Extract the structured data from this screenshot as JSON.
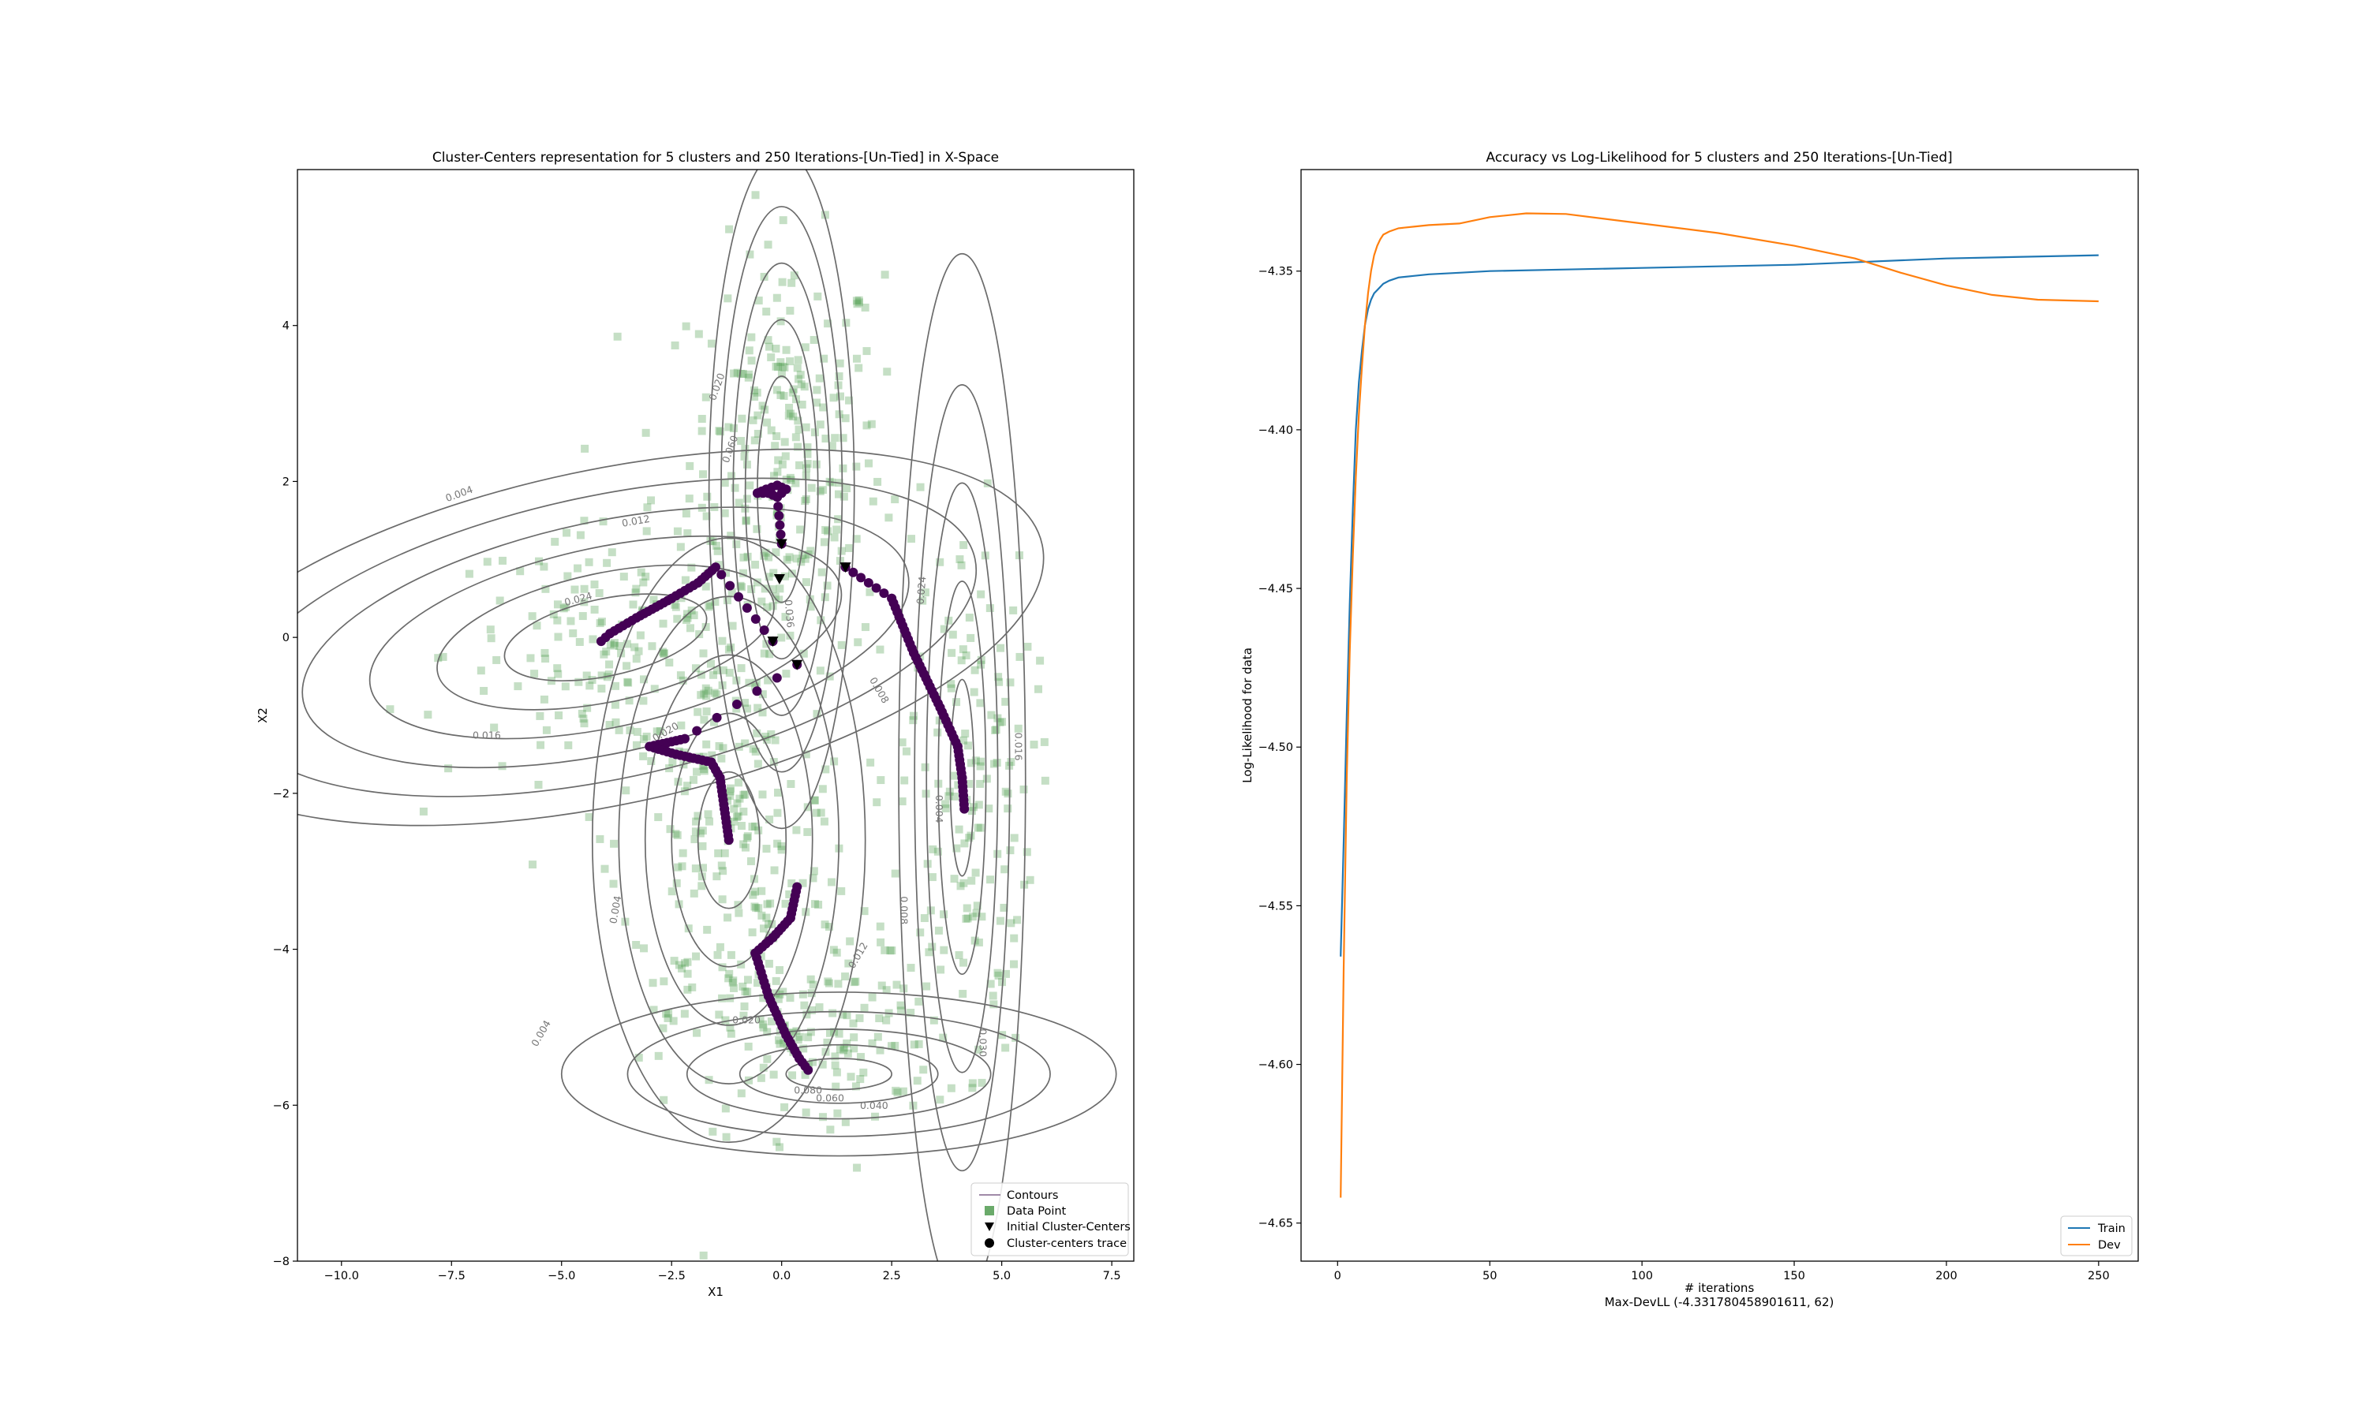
{
  "chart_data": [
    {
      "type": "scatter",
      "title": "Cluster-Centers representation for 5 clusters and 250 Iterations-[Un-Tied] in X-Space",
      "xlabel": "X1",
      "ylabel": "X2",
      "xlim": [
        -11,
        8
      ],
      "ylim": [
        -8,
        6
      ],
      "xticks": [
        "−10.0",
        "−7.5",
        "−5.0",
        "−2.5",
        "0.0",
        "2.5",
        "5.0",
        "7.5"
      ],
      "xtick_values": [
        -10,
        -7.5,
        -5,
        -2.5,
        0,
        2.5,
        5,
        7.5
      ],
      "yticks": [
        "−8",
        "−6",
        "−4",
        "−2",
        "0",
        "2",
        "4"
      ],
      "ytick_values": [
        -8,
        -6,
        -4,
        -2,
        0,
        2,
        4
      ],
      "legend": {
        "position": "lower-right",
        "entries": [
          {
            "label": "Contours",
            "marker": "line",
            "color": "#a08aa8"
          },
          {
            "label": "Data Point",
            "marker": "square",
            "color": "#6aaa6a"
          },
          {
            "label": "Initial Cluster-Centers",
            "marker": "triangle-down",
            "color": "#000000"
          },
          {
            "label": "Cluster-centers trace",
            "marker": "circle",
            "color": "#000000"
          }
        ]
      },
      "colors": {
        "data_point": "#4c9a4c",
        "contour": "#6b6b6b",
        "trace": "#440154",
        "initial": "#000000"
      },
      "initial_centers": [
        {
          "x": 0.0,
          "y": 1.2
        },
        {
          "x": -0.05,
          "y": 0.75
        },
        {
          "x": 1.45,
          "y": 0.9
        },
        {
          "x": -0.2,
          "y": -0.05
        },
        {
          "x": 0.35,
          "y": -0.35
        }
      ],
      "traces": [
        {
          "name": "cluster-1",
          "points": [
            [
              0.0,
              1.2
            ],
            [
              -0.1,
              1.8
            ],
            [
              -0.3,
              1.85
            ],
            [
              -0.55,
              1.85
            ],
            [
              -0.35,
              1.9
            ],
            [
              -0.1,
              1.95
            ],
            [
              0.1,
              1.9
            ],
            [
              0.0,
              1.85
            ]
          ]
        },
        {
          "name": "cluster-2",
          "points": [
            [
              -0.2,
              -0.05
            ],
            [
              -1.5,
              0.9
            ],
            [
              -1.9,
              0.7
            ],
            [
              -2.5,
              0.5
            ],
            [
              -3.3,
              0.25
            ],
            [
              -3.9,
              0.05
            ],
            [
              -4.1,
              -0.05
            ]
          ]
        },
        {
          "name": "cluster-3",
          "points": [
            [
              0.35,
              -0.35
            ],
            [
              -2.2,
              -1.3
            ],
            [
              -3.0,
              -1.4
            ],
            [
              -2.4,
              -1.5
            ],
            [
              -1.6,
              -1.6
            ],
            [
              -1.4,
              -1.8
            ],
            [
              -1.3,
              -2.2
            ],
            [
              -1.2,
              -2.6
            ]
          ]
        },
        {
          "name": "cluster-4",
          "points": [
            [
              1.45,
              0.9
            ],
            [
              2.5,
              0.5
            ],
            [
              3.0,
              -0.2
            ],
            [
              3.6,
              -0.9
            ],
            [
              4.0,
              -1.4
            ],
            [
              4.1,
              -1.8
            ],
            [
              4.15,
              -2.2
            ]
          ]
        },
        {
          "name": "cluster-5",
          "points": [
            [
              0.35,
              -3.2
            ],
            [
              0.2,
              -3.6
            ],
            [
              -0.2,
              -3.85
            ],
            [
              -0.6,
              -4.05
            ],
            [
              -0.3,
              -4.6
            ],
            [
              0.1,
              -5.1
            ],
            [
              0.4,
              -5.4
            ],
            [
              0.6,
              -5.55
            ]
          ]
        }
      ],
      "gaussians": [
        {
          "cx": 0.0,
          "cy": 1.9,
          "sx": 0.55,
          "sy": 1.45,
          "rot": 0,
          "scales": [
            1.0,
            1.5,
            2.0,
            2.5,
            3.0
          ]
        },
        {
          "cx": -4.0,
          "cy": 0.0,
          "sx": 2.6,
          "sy": 0.55,
          "rot": 12,
          "scales": [
            0.9,
            1.5,
            2.1,
            2.7,
            3.3,
            3.9
          ]
        },
        {
          "cx": -1.2,
          "cy": -2.6,
          "sx": 1.0,
          "sy": 1.25,
          "rot": 0,
          "scales": [
            0.7,
            1.3,
            1.9,
            2.5,
            3.1
          ]
        },
        {
          "cx": 4.1,
          "cy": -1.8,
          "sx": 0.45,
          "sy": 2.1,
          "rot": 0,
          "scales": [
            0.6,
            1.2,
            1.8,
            2.4,
            3.2
          ]
        },
        {
          "cx": 1.3,
          "cy": -5.6,
          "sx": 1.5,
          "sy": 0.25,
          "rot": 0,
          "scales": [
            0.8,
            1.5,
            2.3,
            3.2,
            4.2
          ]
        }
      ],
      "contour_labels": [
        {
          "text": "0.004",
          "x": -7.3,
          "y": 1.8,
          "rot": -20
        },
        {
          "text": "0.012",
          "x": -3.3,
          "y": 1.45,
          "rot": -10
        },
        {
          "text": "0.024",
          "x": -4.6,
          "y": 0.45,
          "rot": -15
        },
        {
          "text": "0.016",
          "x": -6.7,
          "y": -1.3,
          "rot": 0
        },
        {
          "text": "0.020",
          "x": -2.6,
          "y": -1.25,
          "rot": -30
        },
        {
          "text": "0.020",
          "x": -1.4,
          "y": 3.2,
          "rot": -70
        },
        {
          "text": "0.060",
          "x": -1.1,
          "y": 2.4,
          "rot": -70
        },
        {
          "text": "0.024",
          "x": 3.25,
          "y": 0.6,
          "rot": -85
        },
        {
          "text": "0.008",
          "x": 2.15,
          "y": -0.7,
          "rot": 60
        },
        {
          "text": "0.036",
          "x": 0.1,
          "y": 0.3,
          "rot": 85
        },
        {
          "text": "0.016",
          "x": 5.3,
          "y": -1.4,
          "rot": 90
        },
        {
          "text": "0.004",
          "x": 3.5,
          "y": -2.2,
          "rot": 90
        },
        {
          "text": "0.008",
          "x": 2.7,
          "y": -3.5,
          "rot": 90
        },
        {
          "text": "0.012",
          "x": 1.8,
          "y": -4.1,
          "rot": -60
        },
        {
          "text": "0.004",
          "x": -3.7,
          "y": -3.5,
          "rot": -80
        },
        {
          "text": "0.004",
          "x": -5.4,
          "y": -5.1,
          "rot": -60
        },
        {
          "text": "0.020",
          "x": -0.8,
          "y": -4.95,
          "rot": 0
        },
        {
          "text": "0.080",
          "x": 0.6,
          "y": -5.85,
          "rot": 0
        },
        {
          "text": "0.060",
          "x": 1.1,
          "y": -5.95,
          "rot": 0
        },
        {
          "text": "0.040",
          "x": 2.1,
          "y": -6.05,
          "rot": 0
        },
        {
          "text": "0.030",
          "x": 4.5,
          "y": -5.2,
          "rot": 90
        }
      ],
      "clusters": [
        {
          "cx": 0.1,
          "cy": 2.3,
          "sx": 1.1,
          "sy": 1.35,
          "n": 260
        },
        {
          "cx": -3.6,
          "cy": -0.2,
          "sx": 2.0,
          "sy": 0.8,
          "n": 190
        },
        {
          "cx": -1.0,
          "cy": -2.7,
          "sx": 1.35,
          "sy": 1.3,
          "n": 220
        },
        {
          "cx": 4.2,
          "cy": -2.0,
          "sx": 0.75,
          "sy": 1.7,
          "n": 160
        },
        {
          "cx": 0.9,
          "cy": -5.1,
          "sx": 1.6,
          "sy": 0.65,
          "n": 150
        }
      ]
    },
    {
      "type": "line",
      "title": "Accuracy vs Log-Likelihood for 5 clusters and 250 Iterations-[Un-Tied]",
      "xlabel": "# iterations",
      "xlabel2": "Max-DevLL (-4.331780458901611, 62)",
      "ylabel": "Log-Likelihood for data",
      "xlim": [
        -12,
        263
      ],
      "ylim": [
        -4.662,
        -4.318
      ],
      "xticks": [
        "0",
        "50",
        "100",
        "150",
        "200",
        "250"
      ],
      "xtick_values": [
        0,
        50,
        100,
        150,
        200,
        250
      ],
      "yticks": [
        "−4.65",
        "−4.60",
        "−4.55",
        "−4.50",
        "−4.45",
        "−4.40",
        "−4.35"
      ],
      "ytick_values": [
        -4.65,
        -4.6,
        -4.55,
        -4.5,
        -4.45,
        -4.4,
        -4.35
      ],
      "legend": {
        "position": "lower-right"
      },
      "series": [
        {
          "name": "Train",
          "color": "#1f77b4",
          "x": [
            1,
            2,
            3,
            4,
            5,
            6,
            7,
            8,
            9,
            10,
            11,
            12,
            13,
            14,
            15,
            17,
            20,
            25,
            30,
            40,
            50,
            75,
            100,
            125,
            150,
            175,
            200,
            225,
            250
          ],
          "y": [
            -4.566,
            -4.53,
            -4.49,
            -4.455,
            -4.425,
            -4.4,
            -4.385,
            -4.375,
            -4.367,
            -4.362,
            -4.359,
            -4.357,
            -4.356,
            -4.355,
            -4.354,
            -4.353,
            -4.352,
            -4.3515,
            -4.351,
            -4.3505,
            -4.35,
            -4.3495,
            -4.349,
            -4.3485,
            -4.348,
            -4.347,
            -4.346,
            -4.3455,
            -4.345
          ]
        },
        {
          "name": "Dev",
          "color": "#ff7f0e",
          "x": [
            1,
            2,
            3,
            4,
            5,
            6,
            7,
            8,
            9,
            10,
            11,
            12,
            13,
            14,
            15,
            17,
            20,
            25,
            30,
            40,
            50,
            62,
            75,
            100,
            125,
            150,
            170,
            185,
            200,
            215,
            230,
            250
          ],
          "y": [
            -4.642,
            -4.57,
            -4.51,
            -4.47,
            -4.44,
            -4.415,
            -4.395,
            -4.38,
            -4.367,
            -4.357,
            -4.35,
            -4.345,
            -4.342,
            -4.34,
            -4.3385,
            -4.3375,
            -4.3365,
            -4.336,
            -4.3355,
            -4.335,
            -4.333,
            -4.3318,
            -4.332,
            -4.335,
            -4.338,
            -4.342,
            -4.346,
            -4.3505,
            -4.3545,
            -4.3575,
            -4.359,
            -4.3595
          ]
        }
      ]
    }
  ]
}
